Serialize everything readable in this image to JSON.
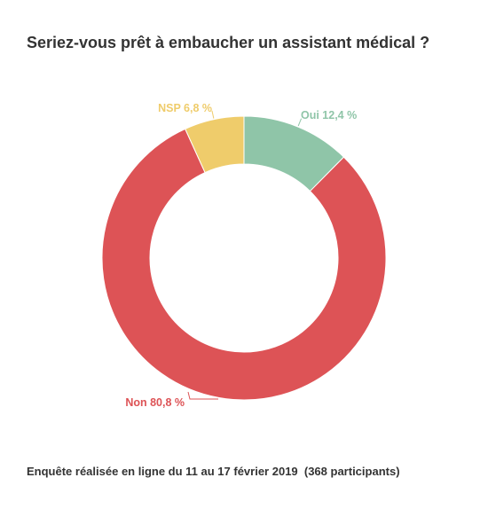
{
  "chart_data": {
    "type": "pie",
    "variant": "donut",
    "title": "Seriez-vous prêt à embaucher un assistant médical ?",
    "footnote": "Enquête réalisée en ligne du 11 au 17 février 2019  (368 participants)",
    "legend": "none",
    "slices": [
      {
        "name": "Oui",
        "value": 12.4,
        "label": "Oui 12,4 %",
        "color": "#8fc5a8"
      },
      {
        "name": "Non",
        "value": 80.8,
        "label": "Non 80,8 %",
        "color": "#dd5356"
      },
      {
        "name": "NSP",
        "value": 6.8,
        "label": "NSP 6,8 %",
        "color": "#efcc6b"
      }
    ]
  }
}
